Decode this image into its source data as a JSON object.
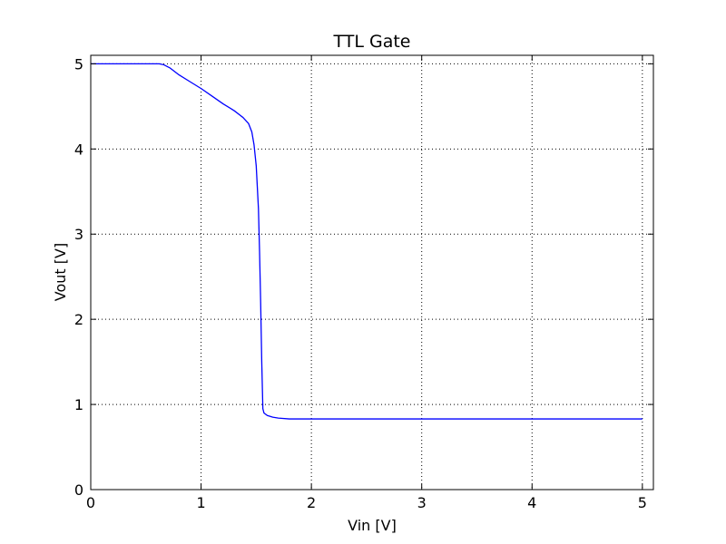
{
  "chart_data": {
    "type": "line",
    "title": "TTL Gate",
    "xlabel": "Vin [V]",
    "ylabel": "Vout [V]",
    "xlim": [
      0,
      5.1
    ],
    "ylim": [
      0,
      5.1
    ],
    "xticks": [
      0,
      1,
      2,
      3,
      4,
      5
    ],
    "yticks": [
      0,
      1,
      2,
      3,
      4,
      5
    ],
    "xtick_labels": [
      "0",
      "1",
      "2",
      "3",
      "4",
      "5"
    ],
    "ytick_labels": [
      "0",
      "1",
      "2",
      "3",
      "4",
      "5"
    ],
    "grid": true,
    "series": [
      {
        "color": "#0000ff",
        "x": [
          0,
          0.5,
          0.62,
          0.66,
          0.72,
          0.8,
          0.9,
          1.0,
          1.1,
          1.2,
          1.3,
          1.38,
          1.43,
          1.46,
          1.48,
          1.5,
          1.52,
          1.53,
          1.54,
          1.55,
          1.56,
          1.57,
          1.6,
          1.65,
          1.7,
          1.8,
          2.0,
          3.0,
          4.0,
          5.0
        ],
        "y": [
          5.0,
          5.0,
          5.0,
          4.99,
          4.95,
          4.87,
          4.79,
          4.71,
          4.62,
          4.53,
          4.45,
          4.37,
          4.3,
          4.2,
          4.05,
          3.8,
          3.3,
          2.8,
          2.2,
          1.5,
          0.95,
          0.9,
          0.87,
          0.85,
          0.84,
          0.83,
          0.83,
          0.83,
          0.83,
          0.83
        ]
      }
    ]
  }
}
